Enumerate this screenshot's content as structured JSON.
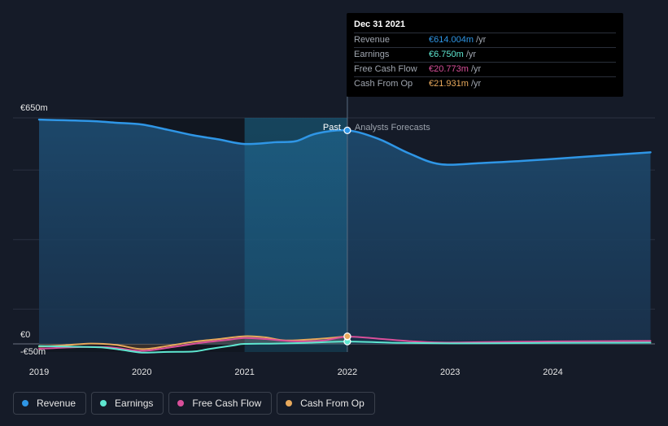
{
  "colors": {
    "background": "#151b28",
    "revenue": "#2f96e6",
    "earnings": "#5ee6d0",
    "free_cash_flow": "#d94f9a",
    "cash_from_op": "#e8a95c"
  },
  "tooltip": {
    "date": "Dec 31 2021",
    "rows": [
      {
        "label": "Revenue",
        "value": "€614.004m",
        "unit": "/yr",
        "color": "#2f96e6"
      },
      {
        "label": "Earnings",
        "value": "€6.750m",
        "unit": "/yr",
        "color": "#5ee6d0"
      },
      {
        "label": "Free Cash Flow",
        "value": "€20.773m",
        "unit": "/yr",
        "color": "#d94f9a"
      },
      {
        "label": "Cash From Op",
        "value": "€21.931m",
        "unit": "/yr",
        "color": "#e8a95c"
      }
    ]
  },
  "legend": [
    {
      "label": "Revenue",
      "color": "#2f96e6"
    },
    {
      "label": "Earnings",
      "color": "#5ee6d0"
    },
    {
      "label": "Free Cash Flow",
      "color": "#d94f9a"
    },
    {
      "label": "Cash From Op",
      "color": "#e8a95c"
    }
  ],
  "chart_data": {
    "type": "line",
    "title": "",
    "xlabel": "",
    "ylabel": "",
    "ylim": [
      -50,
      650
    ],
    "xlim": [
      2018.75,
      2024.95
    ],
    "y_tick_labels": [
      {
        "value": 650,
        "label": "€650m"
      },
      {
        "value": 0,
        "label": "€0"
      },
      {
        "value": -50,
        "label": "-€50m"
      }
    ],
    "x_ticks": [
      2019,
      2020,
      2021,
      2022,
      2023,
      2024
    ],
    "x_tick_labels": [
      "2019",
      "2020",
      "2021",
      "2022",
      "2023",
      "2024"
    ],
    "past_label": "Past",
    "forecast_label": "Analysts Forecasts",
    "divider_x": 2022.0,
    "highlight_range": [
      2021.0,
      2022.0
    ],
    "series": [
      {
        "name": "Revenue",
        "color": "#2f96e6",
        "width": 2.5,
        "area": true,
        "points": [
          [
            2019.0,
            645
          ],
          [
            2019.5,
            641
          ],
          [
            2019.75,
            636
          ],
          [
            2020.0,
            631
          ],
          [
            2020.25,
            616
          ],
          [
            2020.5,
            600
          ],
          [
            2020.75,
            588
          ],
          [
            2021.0,
            575
          ],
          [
            2021.3,
            580
          ],
          [
            2021.5,
            583
          ],
          [
            2021.7,
            605
          ],
          [
            2022.0,
            614
          ],
          [
            2022.3,
            590
          ],
          [
            2022.6,
            548
          ],
          [
            2022.9,
            517
          ],
          [
            2023.3,
            520
          ],
          [
            2023.8,
            528
          ],
          [
            2024.3,
            538
          ],
          [
            2024.95,
            551
          ]
        ]
      },
      {
        "name": "Earnings",
        "color": "#5ee6d0",
        "width": 2,
        "area": false,
        "points": [
          [
            2019.0,
            -6
          ],
          [
            2019.3,
            -8
          ],
          [
            2019.6,
            -10
          ],
          [
            2019.8,
            -17
          ],
          [
            2020.0,
            -25
          ],
          [
            2020.25,
            -23
          ],
          [
            2020.5,
            -22
          ],
          [
            2020.65,
            -15
          ],
          [
            2020.9,
            -4
          ],
          [
            2021.0,
            0
          ],
          [
            2021.3,
            1
          ],
          [
            2021.6,
            3
          ],
          [
            2022.0,
            6.75
          ],
          [
            2022.5,
            3
          ],
          [
            2023.0,
            1.5
          ],
          [
            2023.5,
            2
          ],
          [
            2024.0,
            2.8
          ],
          [
            2024.95,
            3.5
          ]
        ]
      },
      {
        "name": "Free Cash Flow",
        "color": "#d94f9a",
        "width": 2,
        "area": false,
        "points": [
          [
            2019.0,
            -14
          ],
          [
            2019.4,
            -9
          ],
          [
            2019.7,
            -10
          ],
          [
            2020.0,
            -20
          ],
          [
            2020.3,
            -9
          ],
          [
            2020.6,
            4
          ],
          [
            2020.85,
            12
          ],
          [
            2021.0,
            17
          ],
          [
            2021.2,
            14
          ],
          [
            2021.45,
            8
          ],
          [
            2021.75,
            9
          ],
          [
            2022.0,
            20.773
          ],
          [
            2022.3,
            15
          ],
          [
            2022.6,
            8
          ],
          [
            2022.9,
            4
          ],
          [
            2023.3,
            5
          ],
          [
            2023.8,
            6.5
          ],
          [
            2024.3,
            7.5
          ],
          [
            2024.95,
            8.5
          ]
        ]
      },
      {
        "name": "Cash From Op",
        "color": "#e8a95c",
        "width": 2,
        "area": false,
        "points": [
          [
            2019.0,
            -8
          ],
          [
            2019.25,
            -4
          ],
          [
            2019.5,
            1
          ],
          [
            2019.75,
            -3
          ],
          [
            2020.0,
            -15
          ],
          [
            2020.25,
            -6
          ],
          [
            2020.5,
            6
          ],
          [
            2020.75,
            14
          ],
          [
            2021.0,
            22
          ],
          [
            2021.2,
            19
          ],
          [
            2021.4,
            10
          ],
          [
            2021.7,
            14
          ],
          [
            2022.0,
            21.931
          ]
        ]
      }
    ]
  }
}
